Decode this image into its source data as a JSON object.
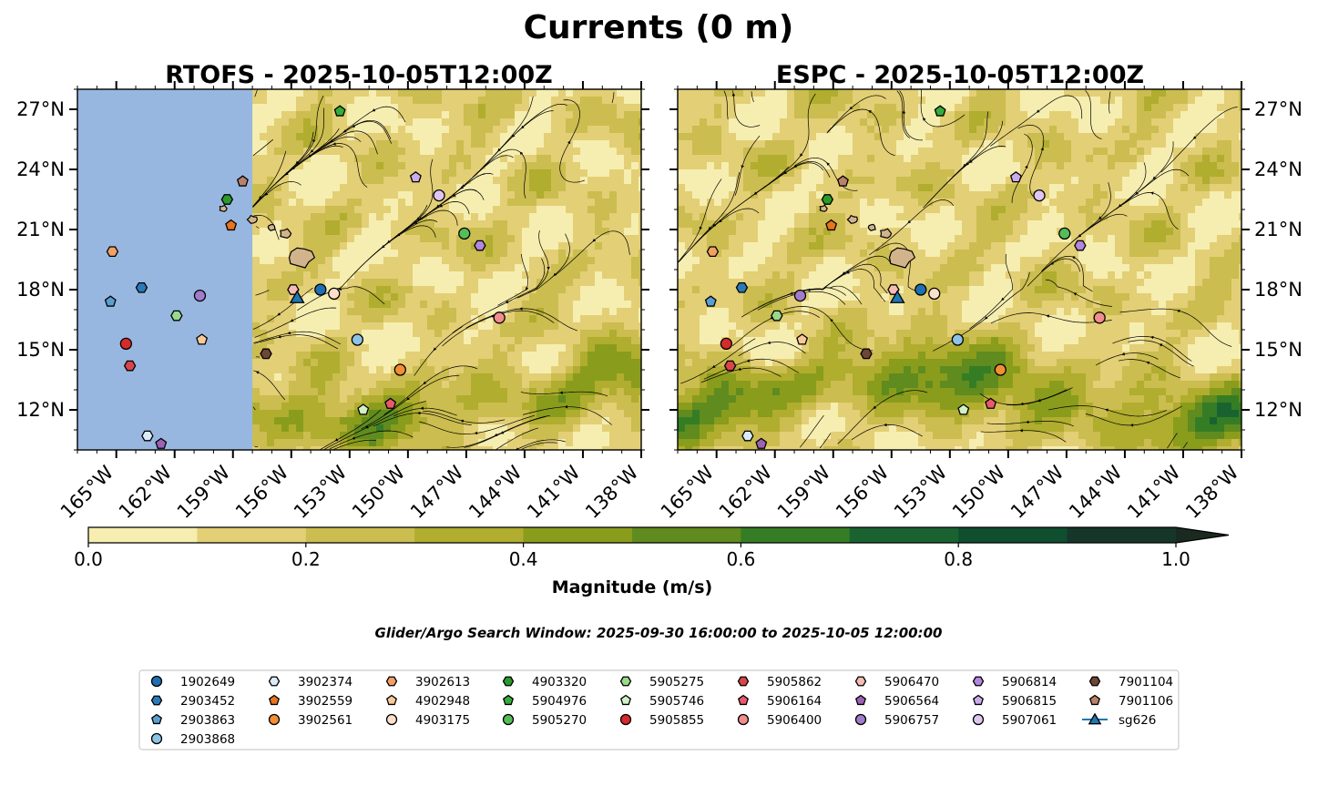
{
  "figure": {
    "suptitle": "Currents (0 m)",
    "search_window": "Glider/Argo Search Window: 2025-09-30 16:00:00 to 2025-10-05 12:00:00"
  },
  "colors": {
    "land_mask": "#98b7e0",
    "island": "#d2b48c",
    "levels": [
      "#f6eeb0",
      "#e3cf75",
      "#cbbd4f",
      "#b0ad2f",
      "#8a9c1c",
      "#5f8b1f",
      "#357d25",
      "#1a6331",
      "#0f4e2e",
      "#17362a",
      "#1b2a21"
    ]
  },
  "colorbar": {
    "label": "Magnitude (m/s)",
    "ticks": [
      "0.0",
      "0.2",
      "0.4",
      "0.6",
      "0.8",
      "1.0"
    ],
    "bounds": [
      0,
      1.0
    ],
    "step": 0.1,
    "extend": "max"
  },
  "chart_data": [
    {
      "type": "map",
      "title": "RTOFS - 2025-10-05T12:00Z",
      "lon_range": [
        -167,
        -138
      ],
      "lat_range": [
        10,
        28
      ],
      "lon_ticks": [
        "165°W",
        "162°W",
        "159°W",
        "156°W",
        "153°W",
        "150°W",
        "147°W",
        "144°W",
        "141°W",
        "138°W"
      ],
      "lat_ticks": [
        "27°N",
        "24°N",
        "21°N",
        "18°N",
        "15°N",
        "12°N"
      ],
      "lat_tick_side": "left",
      "masked_west_of_lon": -158,
      "typical_speed_ms": "0.0-0.4, up to 0.6 along 11-15°N"
    },
    {
      "type": "map",
      "title": "ESPC - 2025-10-05T12:00Z",
      "lon_range": [
        -167,
        -138
      ],
      "lat_range": [
        10,
        28
      ],
      "lon_ticks": [
        "165°W",
        "162°W",
        "159°W",
        "156°W",
        "153°W",
        "150°W",
        "147°W",
        "144°W",
        "141°W",
        "138°W"
      ],
      "lat_ticks": [
        "27°N",
        "24°N",
        "21°N",
        "18°N",
        "15°N",
        "12°N"
      ],
      "lat_tick_side": "right",
      "typical_speed_ms": "0.0-0.5, up to 0.8 along 11-14°N"
    }
  ],
  "platforms": [
    {
      "id": "1902649",
      "marker": "circle",
      "color": "#1f6fb2",
      "lon": -154.5,
      "lat": 18.0
    },
    {
      "id": "2903452",
      "marker": "hexagon",
      "color": "#2a7ab9",
      "lon": -163.7,
      "lat": 18.1
    },
    {
      "id": "2903863",
      "marker": "pentagon",
      "color": "#5b9fd1",
      "lon": -165.3,
      "lat": 17.4
    },
    {
      "id": "2903868",
      "marker": "circle",
      "color": "#8ec3e6",
      "lon": -152.6,
      "lat": 15.5
    },
    {
      "id": "3902374",
      "marker": "hexagon",
      "color": "#d8ebf7",
      "lon": -163.4,
      "lat": 10.7
    },
    {
      "id": "3902559",
      "marker": "pentagon",
      "color": "#e8741b",
      "lon": -159.1,
      "lat": 21.2
    },
    {
      "id": "3902561",
      "marker": "circle",
      "color": "#f28e33",
      "lon": -150.4,
      "lat": 14.0
    },
    {
      "id": "3902613",
      "marker": "hexagon",
      "color": "#f3a064",
      "lon": -165.2,
      "lat": 19.9
    },
    {
      "id": "4902948",
      "marker": "pentagon",
      "color": "#f9c99c",
      "lon": -160.6,
      "lat": 15.5
    },
    {
      "id": "4903175",
      "marker": "circle",
      "color": "#fbe0cc",
      "lon": -153.8,
      "lat": 17.8
    },
    {
      "id": "4903320",
      "marker": "hexagon",
      "color": "#2b9a2b",
      "lon": -159.3,
      "lat": 22.5
    },
    {
      "id": "5904976",
      "marker": "pentagon",
      "color": "#36ad3a",
      "lon": -153.5,
      "lat": 26.9
    },
    {
      "id": "5905270",
      "marker": "circle",
      "color": "#54bd58",
      "lon": -147.1,
      "lat": 20.8
    },
    {
      "id": "5905275",
      "marker": "hexagon",
      "color": "#98d98b",
      "lon": -161.9,
      "lat": 16.7
    },
    {
      "id": "5905746",
      "marker": "pentagon",
      "color": "#d1f0c6",
      "lon": -152.3,
      "lat": 12.0
    },
    {
      "id": "5905855",
      "marker": "circle",
      "color": "#d62b2b",
      "lon": -164.5,
      "lat": 15.3
    },
    {
      "id": "5905862",
      "marker": "hexagon",
      "color": "#d8454a",
      "lon": -164.3,
      "lat": 14.2
    },
    {
      "id": "5906164",
      "marker": "pentagon",
      "color": "#e8596b",
      "lon": -150.9,
      "lat": 12.3
    },
    {
      "id": "5906400",
      "marker": "circle",
      "color": "#f08d8d",
      "lon": -145.3,
      "lat": 16.6
    },
    {
      "id": "5906470",
      "marker": "hexagon",
      "color": "#f6bcb4",
      "lon": -155.9,
      "lat": 18.0
    },
    {
      "id": "5906564",
      "marker": "pentagon",
      "color": "#9b62b5",
      "lon": -162.7,
      "lat": 10.3
    },
    {
      "id": "5906757",
      "marker": "circle",
      "color": "#a07cc9",
      "lon": -160.7,
      "lat": 17.7
    },
    {
      "id": "5906814",
      "marker": "hexagon",
      "color": "#b287dd",
      "lon": -146.3,
      "lat": 20.2
    },
    {
      "id": "5906815",
      "marker": "pentagon",
      "color": "#ccabea",
      "lon": -149.6,
      "lat": 23.6
    },
    {
      "id": "5907061",
      "marker": "circle",
      "color": "#dfc6f1",
      "lon": -148.4,
      "lat": 22.7
    },
    {
      "id": "7901104",
      "marker": "hexagon",
      "color": "#6e4536",
      "lon": -157.3,
      "lat": 14.8
    },
    {
      "id": "7901106",
      "marker": "pentagon",
      "color": "#b9816b",
      "lon": -158.5,
      "lat": 23.4
    },
    {
      "id": "sg626",
      "marker": "triangle",
      "color": "#1f77b4",
      "lon": -155.7,
      "lat": 17.6
    }
  ]
}
